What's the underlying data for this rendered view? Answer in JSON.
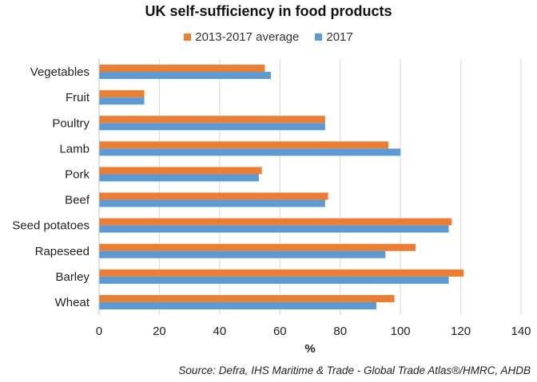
{
  "chart_data": {
    "type": "bar",
    "orientation": "horizontal",
    "title": "UK self-sufficiency in food products",
    "xlabel": "%",
    "ylabel": "",
    "xlim": [
      0,
      140
    ],
    "xticks": [
      0,
      20,
      40,
      60,
      80,
      100,
      120,
      140
    ],
    "grid": true,
    "legend_position": "top",
    "categories": [
      "Vegetables",
      "Fruit",
      "Poultry",
      "Lamb",
      "Pork",
      "Beef",
      "Seed potatoes",
      "Rapeseed",
      "Barley",
      "Wheat"
    ],
    "series": [
      {
        "name": "2013-2017 average",
        "color": "#ED7D31",
        "values": [
          55,
          15,
          75,
          96,
          54,
          76,
          117,
          105,
          121,
          98
        ]
      },
      {
        "name": "2017",
        "color": "#5B9BD5",
        "values": [
          57,
          15,
          75,
          100,
          53,
          75,
          116,
          95,
          116,
          92
        ]
      }
    ],
    "source": "Source: Defra, IHS Maritime & Trade - Global Trade Atlas®/HMRC, AHDB"
  }
}
